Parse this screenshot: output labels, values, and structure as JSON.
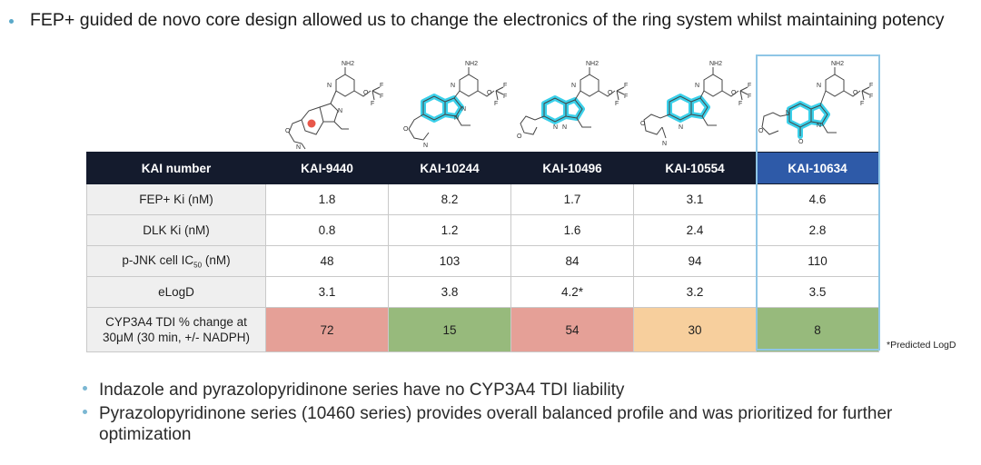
{
  "headline": "FEP+ guided de novo core design allowed us to change the electronics of the ring system whilst maintaining potency",
  "atom_labels": {
    "nh2": "NH2",
    "n": "N",
    "o": "O",
    "f": "F"
  },
  "table": {
    "header_label": "KAI number",
    "compounds": [
      "KAI-9440",
      "KAI-10244",
      "KAI-10496",
      "KAI-10554",
      "KAI-10634"
    ],
    "rows": [
      {
        "label": "FEP+ Ki (nM)",
        "values": [
          "1.8",
          "8.2",
          "1.7",
          "3.1",
          "4.6"
        ]
      },
      {
        "label": "DLK Ki (nM)",
        "values": [
          "0.8",
          "1.2",
          "1.6",
          "2.4",
          "2.8"
        ]
      },
      {
        "label_pre": "p-JNK cell IC",
        "label_sub": "50",
        "label_post": " (nM)",
        "values": [
          "48",
          "103",
          "84",
          "94",
          "110"
        ]
      },
      {
        "label": "eLogD",
        "values": [
          "3.1",
          "3.8",
          "4.2*",
          "3.2",
          "3.5"
        ]
      },
      {
        "label_line1": "CYP3A4 TDI % change at",
        "label_line2": "30μM (30 min, +/- NADPH)",
        "values": [
          "72",
          "15",
          "54",
          "30",
          "8"
        ]
      }
    ]
  },
  "footnote": "*Predicted LogD",
  "bullets": [
    "Indazole and pyrazolopyridinone series have no CYP3A4 TDI liability",
    "Pyrazolopyridinone series (10460 series) provides overall balanced profile and was prioritized for further optimization"
  ],
  "colors": {
    "header_dark": "#141b2d",
    "header_highlight": "#2e5aa8",
    "tdi_red": "#e5a097",
    "tdi_green": "#97ba7c",
    "tdi_orange": "#f7cf9d",
    "core_highlight": "#3ad0ea"
  }
}
